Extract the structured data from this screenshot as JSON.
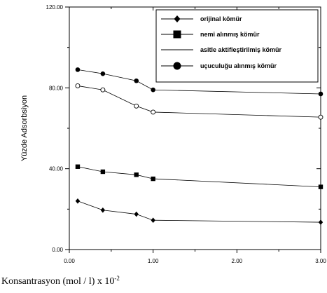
{
  "chart_data": {
    "type": "line",
    "xlabel_main": "Konsantrasyon (mol / l) x 10",
    "xlabel_sup": "-2",
    "ylabel": "Yüzde Adsorbsiyon",
    "xlim": [
      0,
      3.0
    ],
    "ylim": [
      0,
      120
    ],
    "x_ticks": [
      "0.00",
      "1.00",
      "2.00",
      "3.00"
    ],
    "y_ticks": [
      "0.00",
      "40.00",
      "80.00",
      "120.00"
    ],
    "x_tick_values": [
      0,
      1,
      2,
      3
    ],
    "y_tick_values": [
      0,
      40,
      80,
      120
    ],
    "x_minor": [
      0.5,
      1.5,
      2.5
    ],
    "y_minor": [
      20,
      60,
      100
    ],
    "legend_position": "top-right",
    "series": [
      {
        "name": "orijinal kömür",
        "marker": "diamond",
        "x": [
          0.1,
          0.4,
          0.8,
          1.0,
          3.0
        ],
        "y": [
          24,
          19.5,
          17.5,
          14.5,
          13.5
        ]
      },
      {
        "name": "nemi alınmış kömür",
        "marker": "square",
        "x": [
          0.1,
          0.4,
          0.8,
          1.0,
          3.0
        ],
        "y": [
          41,
          38.5,
          37,
          35,
          31
        ]
      },
      {
        "name": "asitle aktifleştirilmiş kömür",
        "marker": "open-circle",
        "x": [
          0.1,
          0.4,
          0.8,
          1.0,
          3.0
        ],
        "y": [
          81,
          79,
          71,
          68,
          65.5
        ]
      },
      {
        "name": "uçuculuğu alınmış kömür",
        "marker": "filled-circle",
        "x": [
          0.1,
          0.4,
          0.8,
          1.0,
          3.0
        ],
        "y": [
          89,
          87,
          83.5,
          79,
          77
        ]
      }
    ],
    "legend_entries": [
      {
        "label": "orijinal kömür",
        "marker": "diamond"
      },
      {
        "label": "nemi alınmış kömür",
        "marker": "square"
      },
      {
        "label": "asitle aktifleştirilmiş kömür",
        "marker": "none"
      },
      {
        "label": "uçuculuğu alınmış kömür",
        "marker": "filled-circle"
      }
    ]
  }
}
